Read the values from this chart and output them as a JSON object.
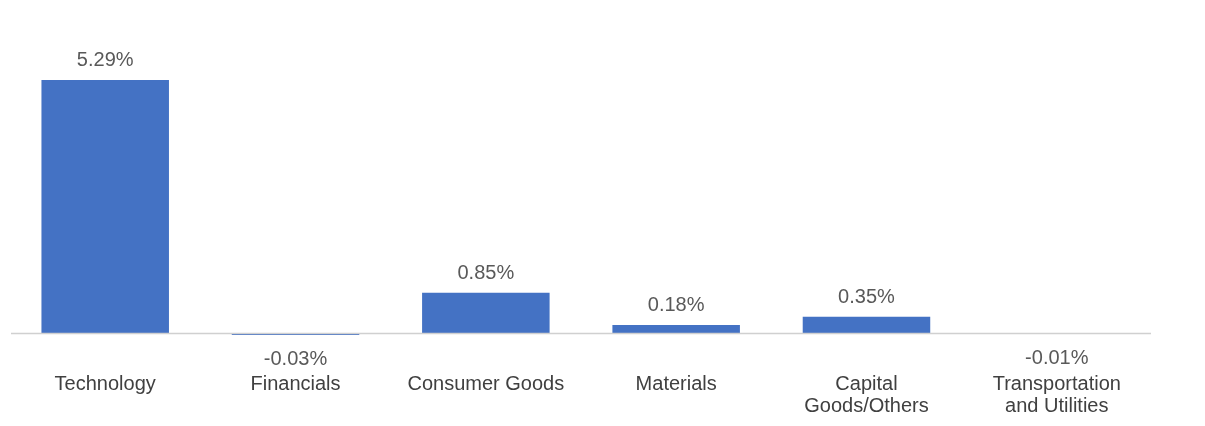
{
  "chart_data": {
    "type": "bar",
    "categories": [
      "Technology",
      "Financials",
      "Consumer Goods",
      "Materials",
      "Capital Goods/Others",
      "Transportation and Utilities"
    ],
    "values": [
      5.29,
      -0.03,
      0.85,
      0.18,
      0.35,
      -0.01
    ],
    "value_labels": [
      "5.29%",
      "-0.03%",
      "0.85%",
      "0.18%",
      "0.35%",
      "-0.01%"
    ],
    "color": "#4472c4",
    "tick_labels": "x"
  }
}
